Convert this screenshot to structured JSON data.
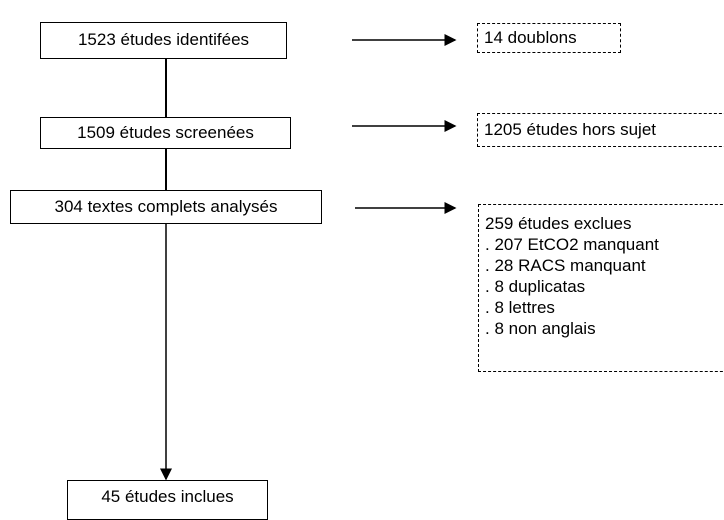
{
  "nodes": [
    {
      "label": "1523 études identifées"
    },
    {
      "label": "1509 études screenées"
    },
    {
      "label": "304 textes complets analysés"
    },
    {
      "label": "45 études inclues"
    }
  ],
  "exclusions": [
    {
      "label": "14 doublons"
    },
    {
      "label": "1205 études hors sujet"
    },
    {
      "label": "259 études exclues",
      "items": [
        ". 207 EtCO2 manquant",
        ". 28 RACS manquant",
        ". 8 duplicatas",
        ". 8 lettres",
        ". 8 non anglais"
      ]
    }
  ]
}
